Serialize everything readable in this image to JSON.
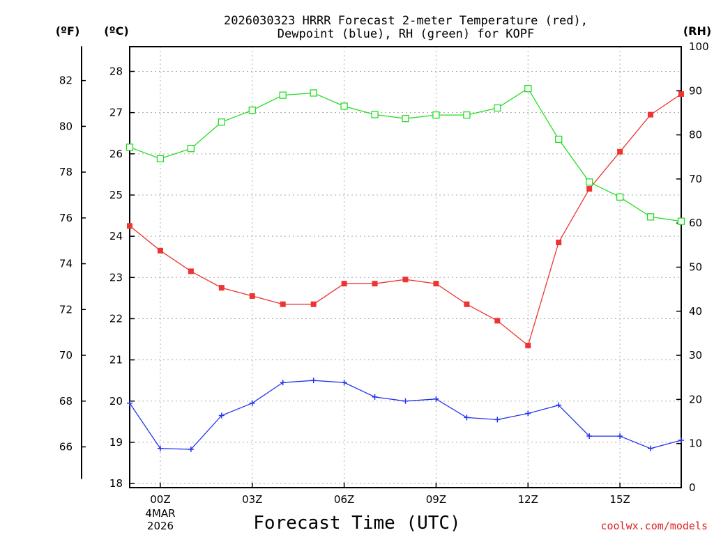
{
  "chart_data": {
    "type": "line",
    "title_line1": "2026030323 HRRR Forecast 2-meter Temperature (red),",
    "title_line2": "Dewpoint (blue), RH (green) for KOPF",
    "xlabel": "Forecast Time (UTC)",
    "date_label_line1": "4MAR",
    "date_label_line2": "2026",
    "credit": "coolwx.com/models",
    "unit_left_f": "(ºF)",
    "unit_left_c": "(ºC)",
    "unit_right_rh": "(RH)",
    "x_hours": [
      -1,
      0,
      1,
      2,
      3,
      4,
      5,
      6,
      7,
      8,
      9,
      10,
      11,
      12,
      13,
      14,
      15,
      16,
      17
    ],
    "xlim": [
      -1,
      17
    ],
    "x_tick_hours": [
      0,
      3,
      6,
      9,
      12,
      15
    ],
    "x_tick_labels": [
      "00Z",
      "03Z",
      "06Z",
      "09Z",
      "12Z",
      "15Z"
    ],
    "celsius_axis": {
      "ylim": [
        17.9,
        28.6
      ],
      "ticks": [
        18,
        19,
        20,
        21,
        22,
        23,
        24,
        25,
        26,
        27,
        28
      ]
    },
    "fahrenheit_ticks": [
      66,
      68,
      70,
      72,
      74,
      76,
      78,
      80,
      82
    ],
    "rh_axis": {
      "ylim": [
        0,
        100
      ],
      "ticks": [
        0,
        10,
        20,
        30,
        40,
        50,
        60,
        70,
        80,
        90,
        100
      ]
    },
    "series": [
      {
        "name": "Temperature",
        "color": "#ee3333",
        "marker": "filled-square",
        "axis": "celsius",
        "values": [
          24.25,
          23.65,
          23.15,
          22.75,
          22.55,
          22.35,
          22.35,
          22.85,
          22.85,
          22.95,
          22.85,
          22.35,
          21.95,
          21.35,
          23.85,
          25.15,
          26.05,
          26.95,
          27.45
        ]
      },
      {
        "name": "Dewpoint",
        "color": "#2233ee",
        "marker": "plus",
        "axis": "celsius",
        "values": [
          19.95,
          18.85,
          18.83,
          19.65,
          19.95,
          20.45,
          20.5,
          20.45,
          20.1,
          20.0,
          20.05,
          19.6,
          19.55,
          19.7,
          19.9,
          19.15,
          19.15,
          18.85,
          19.05
        ]
      },
      {
        "name": "RH",
        "color": "#22dd22",
        "marker": "open-square",
        "axis": "rh",
        "values": [
          77.2,
          74.6,
          76.9,
          82.9,
          85.6,
          89.0,
          89.5,
          86.5,
          84.6,
          83.7,
          84.5,
          84.5,
          86.1,
          90.5,
          79.0,
          69.3,
          65.9,
          61.4,
          60.4
        ]
      }
    ]
  }
}
